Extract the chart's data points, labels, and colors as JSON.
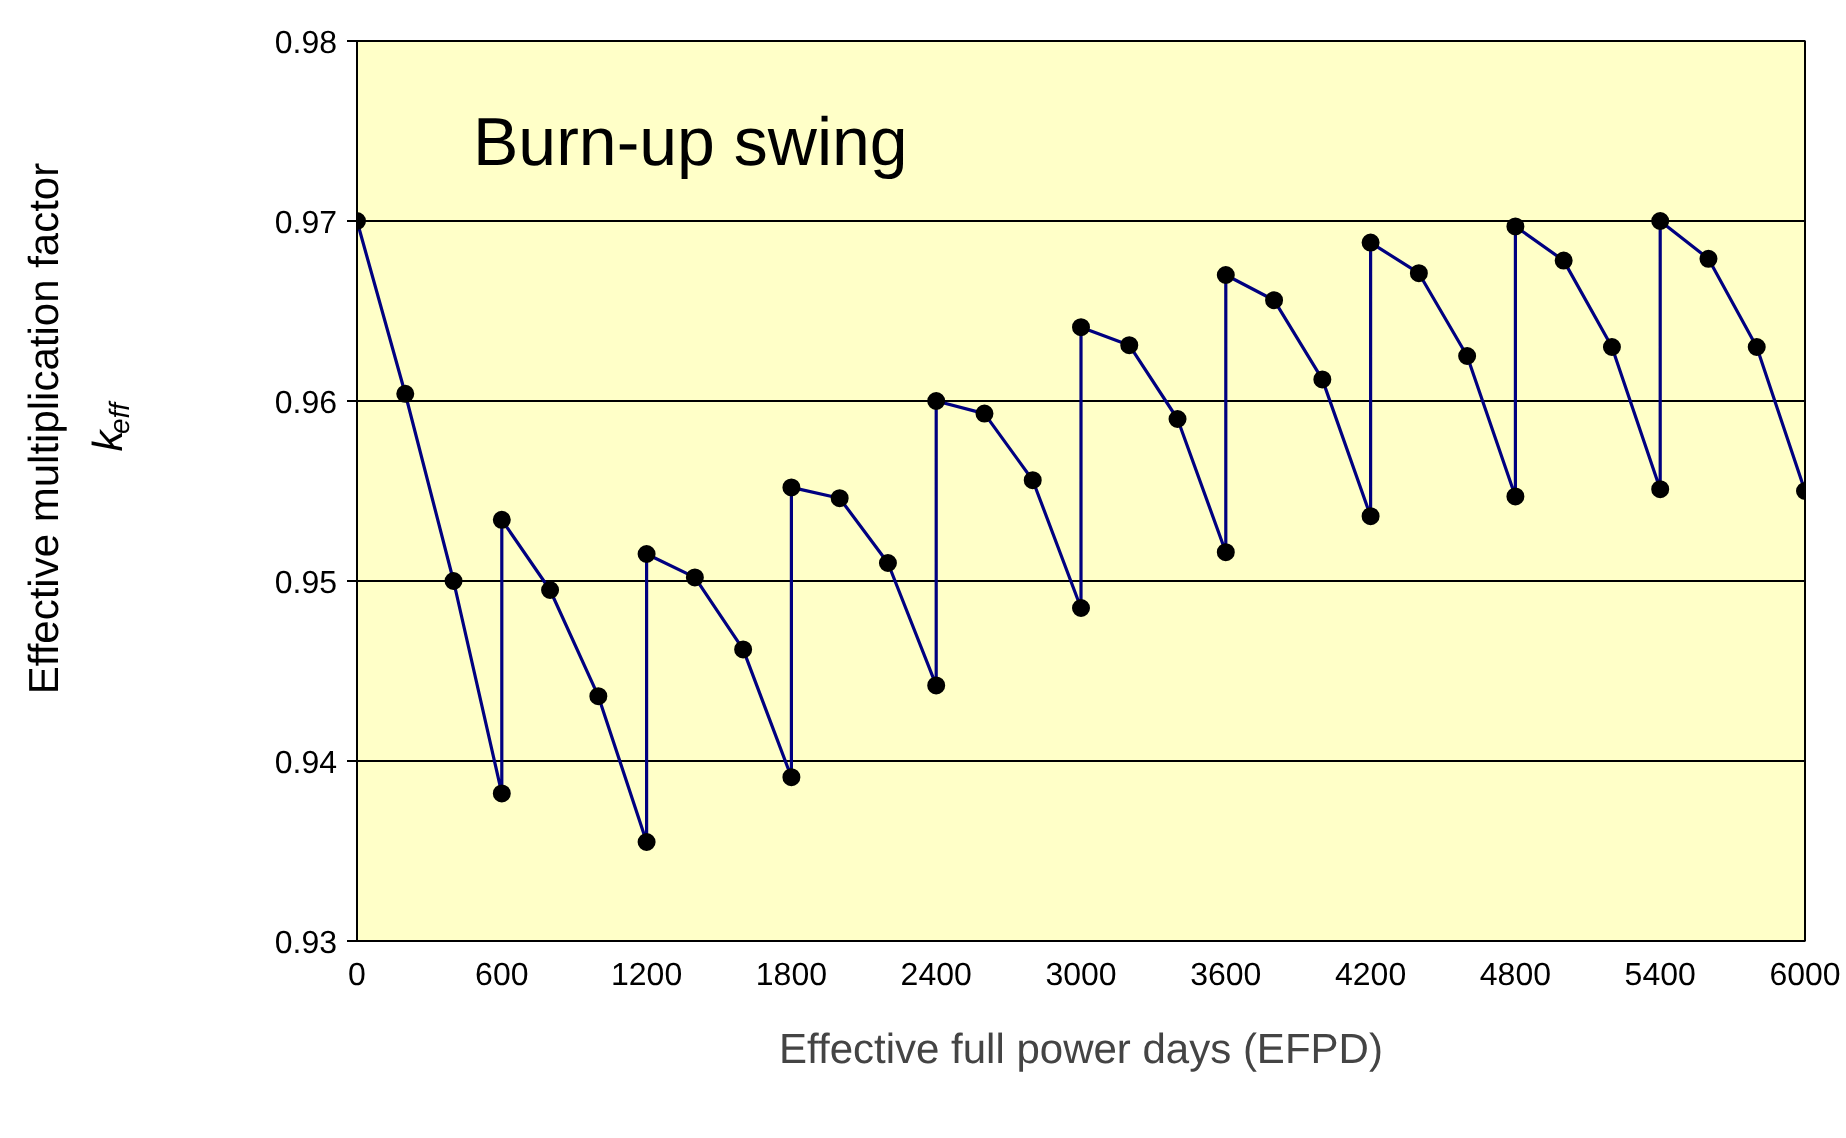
{
  "chart_data": {
    "type": "line",
    "xlabel": "Effective full power days (EFPD)",
    "ylabel": "Effective multiplication factor\nk$_{eff}$",
    "annotations": [
      "Burn-up swing"
    ],
    "series": [
      {
        "color": "#000080",
        "x": [
          0,
          200,
          400,
          600,
          600,
          800,
          1000,
          1200,
          1200,
          1400,
          1600,
          1800,
          1800,
          2000,
          2200,
          2400,
          2400,
          2600,
          2800,
          3000,
          3000,
          3200,
          3400,
          3600,
          3600,
          3800,
          4000,
          4200,
          4200,
          4400,
          4600,
          4800,
          4800,
          5000,
          5200,
          5400,
          5400,
          5600,
          5800,
          6000
        ],
        "values": [
          0.97,
          0.9604,
          0.95,
          0.9382,
          0.9534,
          0.9495,
          0.9436,
          0.9355,
          0.9515,
          0.9502,
          0.9462,
          0.9391,
          0.9552,
          0.9546,
          0.951,
          0.9442,
          0.96,
          0.9593,
          0.9556,
          0.9485,
          0.9641,
          0.9631,
          0.959,
          0.9516,
          0.967,
          0.9656,
          0.9612,
          0.9536,
          0.9688,
          0.9671,
          0.9625,
          0.9547,
          0.9697,
          0.9678,
          0.963,
          0.9551,
          0.97,
          0.9679,
          0.963,
          0.955
        ]
      }
    ],
    "xlim": [
      0,
      6000
    ],
    "xticks": [
      0,
      600,
      1200,
      1800,
      2400,
      3000,
      3600,
      4200,
      4800,
      5400,
      6000
    ],
    "ylim": [
      0.93,
      0.98
    ],
    "yticks": [
      0.93,
      0.94,
      0.95,
      0.96,
      0.97,
      0.98
    ],
    "grid": "y",
    "marker": "circle",
    "line_style": "solid"
  }
}
